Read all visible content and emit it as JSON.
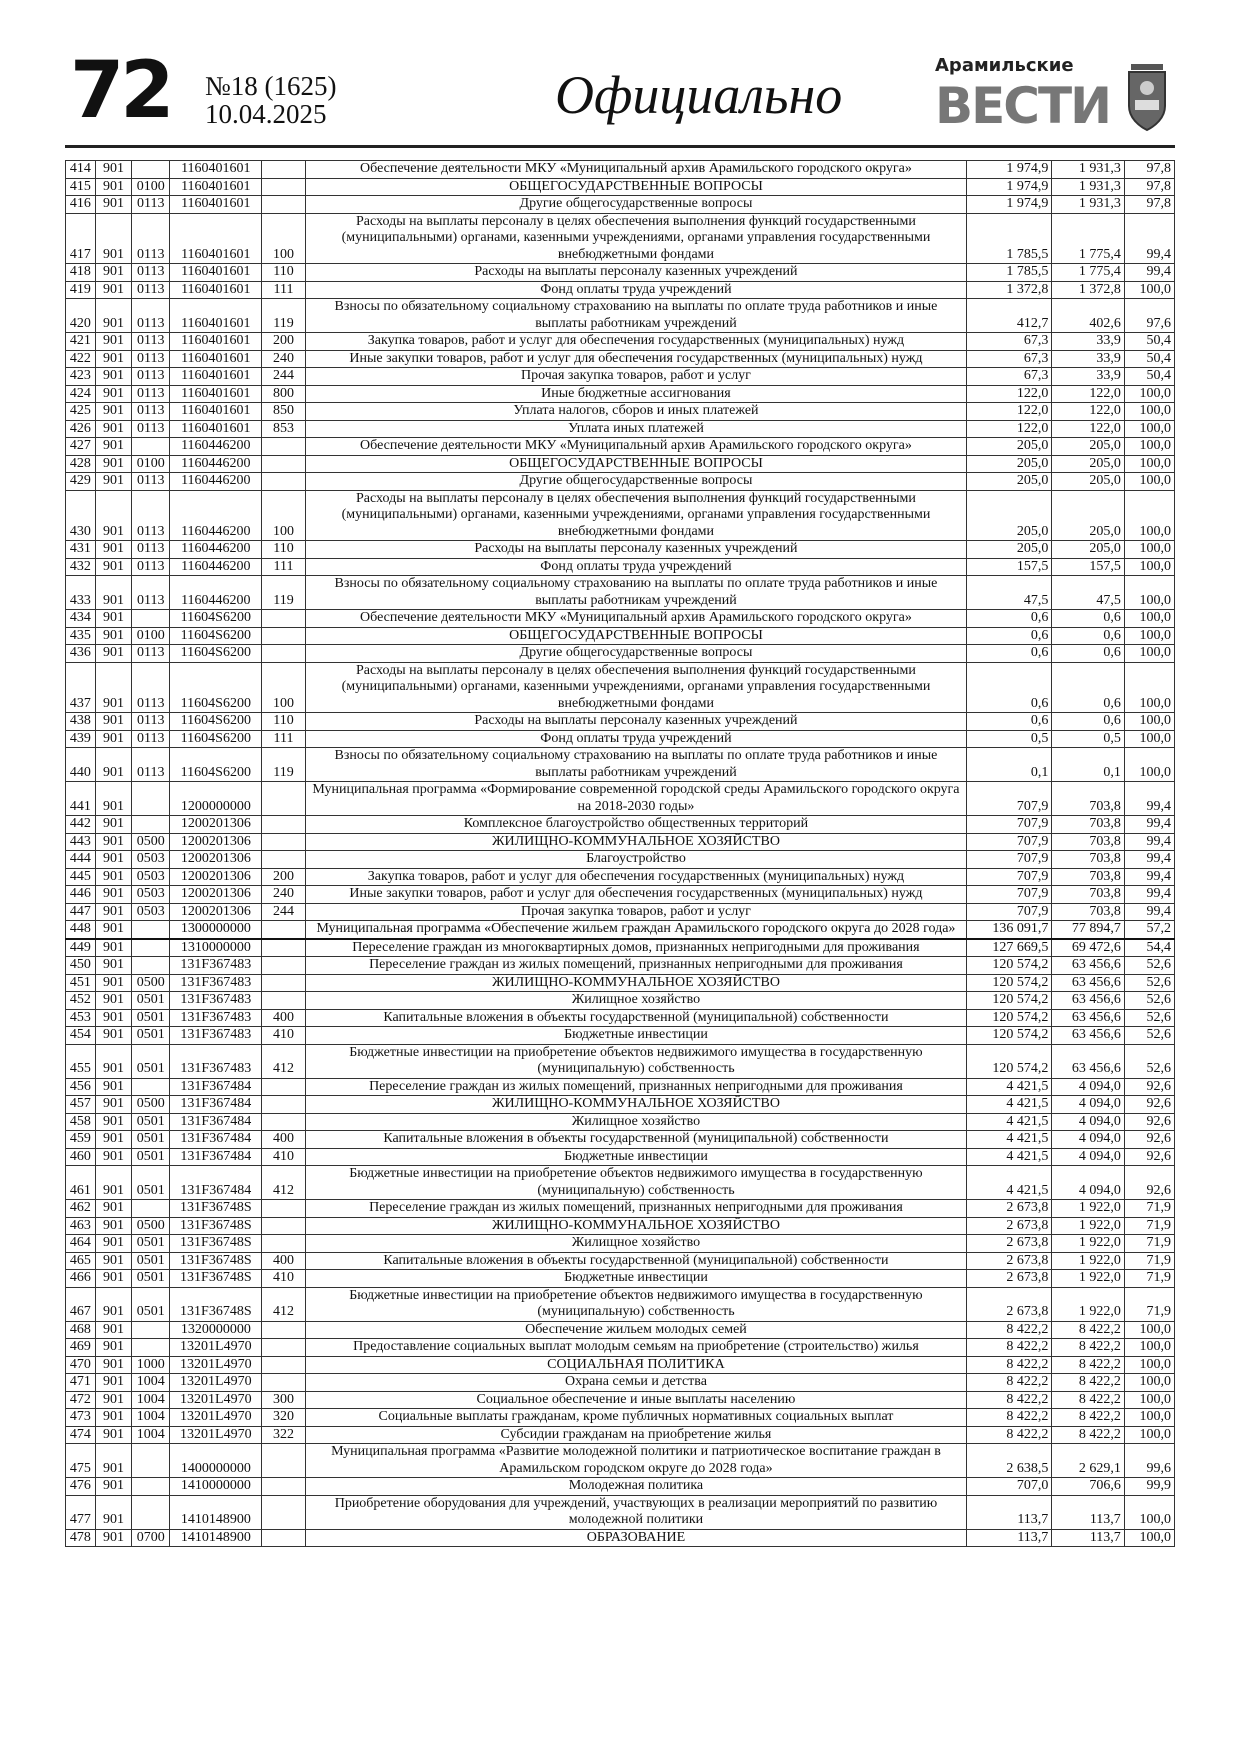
{
  "header": {
    "page_number": "72",
    "issue": "№18 (1625)",
    "date": "10.04.2025",
    "section": "Официально",
    "logo_line1": "Арамильские",
    "logo_line2": "ВЕСТИ"
  },
  "table": {
    "rows": [
      [
        "414",
        "901",
        "",
        "1160401601",
        "",
        "Обеспечение деятельности МКУ «Муниципальный архив Арамильского городского округа»",
        "1 974,9",
        "1 931,3",
        "97,8"
      ],
      [
        "415",
        "901",
        "0100",
        "1160401601",
        "",
        "ОБЩЕГОСУДАРСТВЕННЫЕ ВОПРОСЫ",
        "1 974,9",
        "1 931,3",
        "97,8"
      ],
      [
        "416",
        "901",
        "0113",
        "1160401601",
        "",
        "Другие общегосударственные вопросы",
        "1 974,9",
        "1 931,3",
        "97,8"
      ],
      [
        "417",
        "901",
        "0113",
        "1160401601",
        "100",
        "Расходы на выплаты персоналу в целях обеспечения выполнения функций государственными (муниципальными) органами, казенными учреждениями, органами управления государственными внебюджетными фондами",
        "1 785,5",
        "1 775,4",
        "99,4"
      ],
      [
        "418",
        "901",
        "0113",
        "1160401601",
        "110",
        "Расходы на выплаты персоналу казенных учреждений",
        "1 785,5",
        "1 775,4",
        "99,4"
      ],
      [
        "419",
        "901",
        "0113",
        "1160401601",
        "111",
        "Фонд оплаты труда учреждений",
        "1 372,8",
        "1 372,8",
        "100,0"
      ],
      [
        "420",
        "901",
        "0113",
        "1160401601",
        "119",
        "Взносы по обязательному социальному страхованию на выплаты по оплате труда работников и иные выплаты работникам учреждений",
        "412,7",
        "402,6",
        "97,6"
      ],
      [
        "421",
        "901",
        "0113",
        "1160401601",
        "200",
        "Закупка товаров, работ и услуг для обеспечения государственных (муниципальных) нужд",
        "67,3",
        "33,9",
        "50,4"
      ],
      [
        "422",
        "901",
        "0113",
        "1160401601",
        "240",
        "Иные закупки товаров, работ и услуг для обеспечения государственных (муниципальных) нужд",
        "67,3",
        "33,9",
        "50,4"
      ],
      [
        "423",
        "901",
        "0113",
        "1160401601",
        "244",
        "Прочая закупка товаров, работ и услуг",
        "67,3",
        "33,9",
        "50,4"
      ],
      [
        "424",
        "901",
        "0113",
        "1160401601",
        "800",
        "Иные бюджетные ассигнования",
        "122,0",
        "122,0",
        "100,0"
      ],
      [
        "425",
        "901",
        "0113",
        "1160401601",
        "850",
        "Уплата налогов, сборов и иных платежей",
        "122,0",
        "122,0",
        "100,0"
      ],
      [
        "426",
        "901",
        "0113",
        "1160401601",
        "853",
        "Уплата иных платежей",
        "122,0",
        "122,0",
        "100,0"
      ],
      [
        "427",
        "901",
        "",
        "1160446200",
        "",
        "Обеспечение деятельности МКУ «Муниципальный архив Арамильского городского округа»",
        "205,0",
        "205,0",
        "100,0"
      ],
      [
        "428",
        "901",
        "0100",
        "1160446200",
        "",
        "ОБЩЕГОСУДАРСТВЕННЫЕ ВОПРОСЫ",
        "205,0",
        "205,0",
        "100,0"
      ],
      [
        "429",
        "901",
        "0113",
        "1160446200",
        "",
        "Другие общегосударственные вопросы",
        "205,0",
        "205,0",
        "100,0"
      ],
      [
        "430",
        "901",
        "0113",
        "1160446200",
        "100",
        "Расходы на выплаты персоналу в целях обеспечения выполнения функций государственными (муниципальными) органами, казенными учреждениями, органами управления государственными внебюджетными фондами",
        "205,0",
        "205,0",
        "100,0"
      ],
      [
        "431",
        "901",
        "0113",
        "1160446200",
        "110",
        "Расходы на выплаты персоналу казенных учреждений",
        "205,0",
        "205,0",
        "100,0"
      ],
      [
        "432",
        "901",
        "0113",
        "1160446200",
        "111",
        "Фонд оплаты труда учреждений",
        "157,5",
        "157,5",
        "100,0"
      ],
      [
        "433",
        "901",
        "0113",
        "1160446200",
        "119",
        "Взносы по обязательному социальному страхованию на выплаты по оплате труда работников и иные выплаты работникам учреждений",
        "47,5",
        "47,5",
        "100,0"
      ],
      [
        "434",
        "901",
        "",
        "11604S6200",
        "",
        "Обеспечение деятельности МКУ «Муниципальный архив Арамильского городского округа»",
        "0,6",
        "0,6",
        "100,0"
      ],
      [
        "435",
        "901",
        "0100",
        "11604S6200",
        "",
        "ОБЩЕГОСУДАРСТВЕННЫЕ ВОПРОСЫ",
        "0,6",
        "0,6",
        "100,0"
      ],
      [
        "436",
        "901",
        "0113",
        "11604S6200",
        "",
        "Другие общегосударственные вопросы",
        "0,6",
        "0,6",
        "100,0"
      ],
      [
        "437",
        "901",
        "0113",
        "11604S6200",
        "100",
        "Расходы на выплаты персоналу в целях обеспечения выполнения функций государственными (муниципальными) органами, казенными учреждениями, органами управления государственными внебюджетными фондами",
        "0,6",
        "0,6",
        "100,0"
      ],
      [
        "438",
        "901",
        "0113",
        "11604S6200",
        "110",
        "Расходы на выплаты персоналу казенных учреждений",
        "0,6",
        "0,6",
        "100,0"
      ],
      [
        "439",
        "901",
        "0113",
        "11604S6200",
        "111",
        "Фонд оплаты труда учреждений",
        "0,5",
        "0,5",
        "100,0"
      ],
      [
        "440",
        "901",
        "0113",
        "11604S6200",
        "119",
        "Взносы по обязательному социальному страхованию на выплаты по оплате труда работников и иные выплаты работникам учреждений",
        "0,1",
        "0,1",
        "100,0"
      ],
      [
        "441",
        "901",
        "",
        "1200000000",
        "",
        "Муниципальная программа «Формирование современной городской среды Арамильского городского округа на 2018-2030 годы»",
        "707,9",
        "703,8",
        "99,4"
      ],
      [
        "442",
        "901",
        "",
        "1200201306",
        "",
        "Комплексное благоустройство общественных территорий",
        "707,9",
        "703,8",
        "99,4"
      ],
      [
        "443",
        "901",
        "0500",
        "1200201306",
        "",
        "ЖИЛИЩНО-КОММУНАЛЬНОЕ ХОЗЯЙСТВО",
        "707,9",
        "703,8",
        "99,4"
      ],
      [
        "444",
        "901",
        "0503",
        "1200201306",
        "",
        "Благоустройство",
        "707,9",
        "703,8",
        "99,4"
      ],
      [
        "445",
        "901",
        "0503",
        "1200201306",
        "200",
        "Закупка товаров, работ и услуг для обеспечения государственных (муниципальных) нужд",
        "707,9",
        "703,8",
        "99,4"
      ],
      [
        "446",
        "901",
        "0503",
        "1200201306",
        "240",
        "Иные закупки товаров, работ и услуг для обеспечения государственных (муниципальных) нужд",
        "707,9",
        "703,8",
        "99,4"
      ],
      [
        "447",
        "901",
        "0503",
        "1200201306",
        "244",
        "Прочая закупка товаров, работ и услуг",
        "707,9",
        "703,8",
        "99,4"
      ],
      [
        "448",
        "901",
        "",
        "1300000000",
        "",
        "Муниципальная программа «Обеспечение жильем граждан Арамильского городского округа до 2028 года»",
        "136 091,7",
        "77 894,7",
        "57,2"
      ],
      [
        "449",
        "901",
        "",
        "1310000000",
        "",
        "Переселение граждан из многоквартирных домов, признанных непригодными для проживания",
        "127 669,5",
        "69 472,6",
        "54,4"
      ],
      [
        "450",
        "901",
        "",
        "131F367483",
        "",
        "Переселение граждан из жилых помещений, признанных непригодными для проживания",
        "120 574,2",
        "63 456,6",
        "52,6"
      ],
      [
        "451",
        "901",
        "0500",
        "131F367483",
        "",
        "ЖИЛИЩНО-КОММУНАЛЬНОЕ ХОЗЯЙСТВО",
        "120 574,2",
        "63 456,6",
        "52,6"
      ],
      [
        "452",
        "901",
        "0501",
        "131F367483",
        "",
        "Жилищное хозяйство",
        "120 574,2",
        "63 456,6",
        "52,6"
      ],
      [
        "453",
        "901",
        "0501",
        "131F367483",
        "400",
        "Капитальные вложения в объекты государственной (муниципальной) собственности",
        "120 574,2",
        "63 456,6",
        "52,6"
      ],
      [
        "454",
        "901",
        "0501",
        "131F367483",
        "410",
        "Бюджетные инвестиции",
        "120 574,2",
        "63 456,6",
        "52,6"
      ],
      [
        "455",
        "901",
        "0501",
        "131F367483",
        "412",
        "Бюджетные инвестиции на приобретение объектов недвижимого имущества в государственную (муниципальную) собственность",
        "120 574,2",
        "63 456,6",
        "52,6"
      ],
      [
        "456",
        "901",
        "",
        "131F367484",
        "",
        "Переселение граждан из жилых помещений, признанных непригодными для проживания",
        "4 421,5",
        "4 094,0",
        "92,6"
      ],
      [
        "457",
        "901",
        "0500",
        "131F367484",
        "",
        "ЖИЛИЩНО-КОММУНАЛЬНОЕ ХОЗЯЙСТВО",
        "4 421,5",
        "4 094,0",
        "92,6"
      ],
      [
        "458",
        "901",
        "0501",
        "131F367484",
        "",
        "Жилищное хозяйство",
        "4 421,5",
        "4 094,0",
        "92,6"
      ],
      [
        "459",
        "901",
        "0501",
        "131F367484",
        "400",
        "Капитальные вложения в объекты государственной (муниципальной) собственности",
        "4 421,5",
        "4 094,0",
        "92,6"
      ],
      [
        "460",
        "901",
        "0501",
        "131F367484",
        "410",
        "Бюджетные инвестиции",
        "4 421,5",
        "4 094,0",
        "92,6"
      ],
      [
        "461",
        "901",
        "0501",
        "131F367484",
        "412",
        "Бюджетные инвестиции на приобретение объектов недвижимого имущества в государственную (муниципальную) собственность",
        "4 421,5",
        "4 094,0",
        "92,6"
      ],
      [
        "462",
        "901",
        "",
        "131F36748S",
        "",
        "Переселение граждан из жилых помещений, признанных непригодными для проживания",
        "2 673,8",
        "1 922,0",
        "71,9"
      ],
      [
        "463",
        "901",
        "0500",
        "131F36748S",
        "",
        "ЖИЛИЩНО-КОММУНАЛЬНОЕ ХОЗЯЙСТВО",
        "2 673,8",
        "1 922,0",
        "71,9"
      ],
      [
        "464",
        "901",
        "0501",
        "131F36748S",
        "",
        "Жилищное хозяйство",
        "2 673,8",
        "1 922,0",
        "71,9"
      ],
      [
        "465",
        "901",
        "0501",
        "131F36748S",
        "400",
        "Капитальные вложения в объекты государственной (муниципальной) собственности",
        "2 673,8",
        "1 922,0",
        "71,9"
      ],
      [
        "466",
        "901",
        "0501",
        "131F36748S",
        "410",
        "Бюджетные инвестиции",
        "2 673,8",
        "1 922,0",
        "71,9"
      ],
      [
        "467",
        "901",
        "0501",
        "131F36748S",
        "412",
        "Бюджетные инвестиции на приобретение объектов недвижимого имущества в государственную (муниципальную) собственность",
        "2 673,8",
        "1 922,0",
        "71,9"
      ],
      [
        "468",
        "901",
        "",
        "1320000000",
        "",
        "Обеспечение жильем молодых семей",
        "8 422,2",
        "8 422,2",
        "100,0"
      ],
      [
        "469",
        "901",
        "",
        "13201L4970",
        "",
        "Предоставление социальных выплат молодым семьям на приобретение (строительство) жилья",
        "8 422,2",
        "8 422,2",
        "100,0"
      ],
      [
        "470",
        "901",
        "1000",
        "13201L4970",
        "",
        "СОЦИАЛЬНАЯ ПОЛИТИКА",
        "8 422,2",
        "8 422,2",
        "100,0"
      ],
      [
        "471",
        "901",
        "1004",
        "13201L4970",
        "",
        "Охрана семьи и детства",
        "8 422,2",
        "8 422,2",
        "100,0"
      ],
      [
        "472",
        "901",
        "1004",
        "13201L4970",
        "300",
        "Социальное обеспечение и иные выплаты населению",
        "8 422,2",
        "8 422,2",
        "100,0"
      ],
      [
        "473",
        "901",
        "1004",
        "13201L4970",
        "320",
        "Социальные выплаты гражданам, кроме публичных нормативных социальных выплат",
        "8 422,2",
        "8 422,2",
        "100,0"
      ],
      [
        "474",
        "901",
        "1004",
        "13201L4970",
        "322",
        "Субсидии гражданам на приобретение жилья",
        "8 422,2",
        "8 422,2",
        "100,0"
      ],
      [
        "475",
        "901",
        "",
        "1400000000",
        "",
        "Муниципальная программа «Развитие молодежной политики и патриотическое воспитание граждан в Арамильском городском округе до 2028 года»",
        "2 638,5",
        "2 629,1",
        "99,6"
      ],
      [
        "476",
        "901",
        "",
        "1410000000",
        "",
        "Молодежная политика",
        "707,0",
        "706,6",
        "99,9"
      ],
      [
        "477",
        "901",
        "",
        "1410148900",
        "",
        "Приобретение оборудования для учреждений, участвующих в реализации мероприятий по развитию молодежной политики",
        "113,7",
        "113,7",
        "100,0"
      ],
      [
        "478",
        "901",
        "0700",
        "1410148900",
        "",
        "ОБРАЗОВАНИЕ",
        "113,7",
        "113,7",
        "100,0"
      ]
    ]
  }
}
